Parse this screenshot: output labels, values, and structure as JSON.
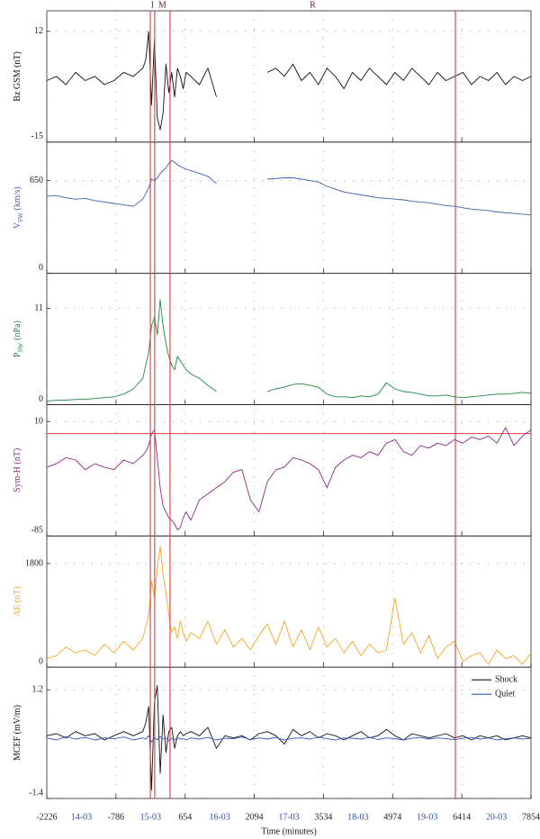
{
  "chart_data": {
    "type": "line",
    "x": [
      -2226,
      -2026,
      -1826,
      -1626,
      -1426,
      -1226,
      -1026,
      -826,
      -626,
      -426,
      -226,
      -166,
      -106,
      -46,
      14,
      74,
      134,
      194,
      254,
      314,
      374,
      434,
      494,
      554,
      614,
      674,
      774,
      951,
      1128,
      1305,
      1482,
      1659,
      1836,
      2013,
      2190,
      2367,
      2544,
      2721,
      2898,
      3075,
      3252,
      3429,
      3606,
      3783,
      3960,
      4137,
      4314,
      4491,
      4668,
      4845,
      5022,
      5199,
      5376,
      5553,
      5730,
      5907,
      6084,
      6261,
      6438,
      6615,
      6792,
      6969,
      7146,
      7323,
      7500,
      7677,
      7854
    ],
    "xlim": [
      -2226,
      7854
    ],
    "xticks": [
      -2226,
      -786,
      654,
      2094,
      3534,
      4974,
      6414,
      7854
    ],
    "xlabel": "Time (minutes)",
    "days": [
      "14-03",
      "15-03",
      "16-03",
      "17-03",
      "18-03",
      "19-03",
      "20-03"
    ],
    "day_color": "#2b4fa8",
    "grid": true,
    "vlines": [
      -70,
      20,
      340,
      6280
    ],
    "phases": [
      "I",
      "M",
      "R"
    ],
    "marker_color": "#e03a3a",
    "panels": [
      {
        "ylabel": "Bz GSM (nT)",
        "ylim": [
          -15,
          17
        ],
        "yticks": [
          -15,
          12
        ],
        "series": [
          {
            "color": "#111111",
            "values": [
              0,
              1,
              -1,
              2,
              0,
              1,
              -1,
              0,
              2,
              1,
              3,
              5,
              12,
              -6,
              10,
              -9,
              -12,
              -8,
              4,
              -3,
              2,
              -4,
              3,
              1,
              -2,
              2,
              1,
              -1,
              3,
              -4,
              null,
              null,
              null,
              null,
              null,
              2,
              3,
              1,
              4,
              0,
              2,
              -1,
              3,
              1,
              -2,
              2,
              0,
              3,
              1,
              -1,
              2,
              0,
              3,
              1,
              -1,
              2,
              0,
              1,
              2,
              -1,
              1,
              0,
              2,
              -1,
              1,
              0,
              1
            ]
          }
        ]
      },
      {
        "ylabel": "V",
        "ylabel_sub": "SW",
        "ylabel_unit": "(km/s)",
        "ylim": [
          0,
          920
        ],
        "yticks": [
          0,
          650
        ],
        "series": [
          {
            "color": "#3a5fb0",
            "values": [
              540,
              545,
              530,
              520,
              525,
              510,
              500,
              490,
              480,
              470,
              520,
              560,
              600,
              660,
              650,
              670,
              700,
              720,
              740,
              770,
              790,
              780,
              760,
              750,
              740,
              730,
              720,
              700,
              680,
              630,
              null,
              null,
              null,
              null,
              null,
              660,
              665,
              670,
              670,
              660,
              650,
              640,
              610,
              590,
              570,
              560,
              550,
              540,
              530,
              525,
              520,
              515,
              505,
              500,
              495,
              485,
              475,
              470,
              460,
              450,
              445,
              440,
              430,
              425,
              420,
              415,
              412
            ]
          }
        ]
      },
      {
        "ylabel": "P",
        "ylabel_sub": "SW",
        "ylabel_unit": "(nPa)",
        "ylim": [
          0,
          15
        ],
        "yticks": [
          0,
          11
        ],
        "series": [
          {
            "color": "#1e8a3c",
            "values": [
              0.4,
              0.5,
              0.5,
              0.6,
              0.6,
              0.7,
              0.8,
              0.9,
              1.2,
              1.8,
              3.0,
              4.5,
              6,
              9,
              10,
              8,
              12,
              9,
              7,
              5.5,
              4.5,
              4,
              5.5,
              5,
              4.5,
              4,
              3.5,
              3,
              2.2,
              1.5,
              null,
              null,
              null,
              null,
              null,
              1.5,
              1.8,
              2,
              2.3,
              2.4,
              2.2,
              2.0,
              1.2,
              0.9,
              0.9,
              0.8,
              1.0,
              0.9,
              1.2,
              2.5,
              1.8,
              1.5,
              1.4,
              1.2,
              1.0,
              1.0,
              1.1,
              0.9,
              0.8,
              0.9,
              1.0,
              1.1,
              1.2,
              1.2,
              1.3,
              1.4,
              1.3
            ]
          }
        ]
      },
      {
        "ylabel": "Sym-H (nT)",
        "ylim": [
          -85,
          24
        ],
        "yticks": [
          -85,
          10
        ],
        "hline": 0,
        "series": [
          {
            "color": "#8b2a8b",
            "values": [
              -28,
              -25,
              -20,
              -22,
              -30,
              -25,
              -28,
              -30,
              -22,
              -25,
              -18,
              -15,
              -10,
              0,
              3,
              -20,
              -45,
              -60,
              -65,
              -70,
              -72,
              -75,
              -80,
              -78,
              -70,
              -65,
              -72,
              -55,
              -50,
              -45,
              -40,
              -32,
              -30,
              -55,
              -65,
              -40,
              -30,
              -28,
              -20,
              -22,
              -25,
              -30,
              -45,
              -28,
              -22,
              -18,
              -20,
              -15,
              -18,
              -8,
              -5,
              -15,
              -18,
              -10,
              -12,
              -8,
              -10,
              -5,
              -8,
              -3,
              -5,
              -2,
              -8,
              5,
              -10,
              -2,
              3
            ]
          }
        ]
      },
      {
        "ylabel": "AE (nT)",
        "ylim": [
          0,
          2280
        ],
        "yticks": [
          0,
          1800
        ],
        "series": [
          {
            "color": "#f5a623",
            "values": [
              150,
              200,
              350,
              250,
              300,
              200,
              400,
              250,
              450,
              300,
              500,
              700,
              900,
              1500,
              1200,
              1700,
              2100,
              1600,
              1300,
              900,
              600,
              700,
              500,
              800,
              600,
              450,
              600,
              500,
              800,
              400,
              650,
              350,
              500,
              300,
              550,
              750,
              400,
              800,
              350,
              650,
              300,
              700,
              350,
              500,
              250,
              450,
              200,
              400,
              250,
              300,
              1200,
              400,
              600,
              250,
              550,
              150,
              350,
              450,
              100,
              200,
              250,
              50,
              300,
              150,
              200,
              50,
              250
            ]
          }
        ]
      },
      {
        "ylabel": "MCEF (mV/m)",
        "ylim": [
          -1.4,
          1.74
        ],
        "yticks": [
          -1.4,
          1.2
        ],
        "legend": "upper right",
        "series": [
          {
            "name": "Shock",
            "color": "#111111",
            "values": [
              0.1,
              0.15,
              0.05,
              0.2,
              0.1,
              0.15,
              0.0,
              0.1,
              0.2,
              0.1,
              0.2,
              0.4,
              0.8,
              -1.2,
              0.9,
              1.3,
              -0.8,
              0.6,
              -0.3,
              0.2,
              0.3,
              -0.2,
              0.1,
              0.2,
              0.1,
              0.15,
              0.2,
              0.1,
              0.3,
              -0.2,
              0.1,
              0.05,
              0.1,
              0.0,
              0.15,
              0.2,
              0.1,
              -0.1,
              0.25,
              0.1,
              0.2,
              0.05,
              0.15,
              0.1,
              0.0,
              0.1,
              0.2,
              0.05,
              0.1,
              0.25,
              0.1,
              0.0,
              0.15,
              0.1,
              0.05,
              0.1,
              0.15,
              0.05,
              0.1,
              0.0,
              0.1,
              0.05,
              0.1,
              0.0,
              0.05,
              0.1,
              0.05
            ]
          },
          {
            "name": "Quiet",
            "color": "#3355bb",
            "values": [
              0.05,
              0.0,
              0.08,
              0.02,
              0.06,
              0.0,
              0.05,
              0.03,
              0.07,
              0.0,
              0.05,
              0.02,
              0.1,
              -0.05,
              0.05,
              0.0,
              0.08,
              0.02,
              0.05,
              -0.02,
              0.04,
              0.0,
              0.06,
              0.02,
              0.03,
              0.0,
              0.05,
              0.02,
              0.06,
              0.0,
              0.04,
              0.03,
              0.07,
              0.01,
              0.05,
              0.02,
              0.06,
              0.0,
              0.04,
              0.05,
              0.02,
              0.07,
              0.03,
              0.0,
              0.05,
              0.04,
              0.02,
              0.06,
              0.01,
              0.05,
              0.03,
              0.0,
              0.04,
              0.06,
              0.02,
              0.05,
              0.03,
              0.01,
              0.04,
              0.06,
              0.02,
              0.05,
              0.0,
              0.03,
              0.05,
              0.02,
              0.04
            ]
          }
        ]
      }
    ]
  }
}
